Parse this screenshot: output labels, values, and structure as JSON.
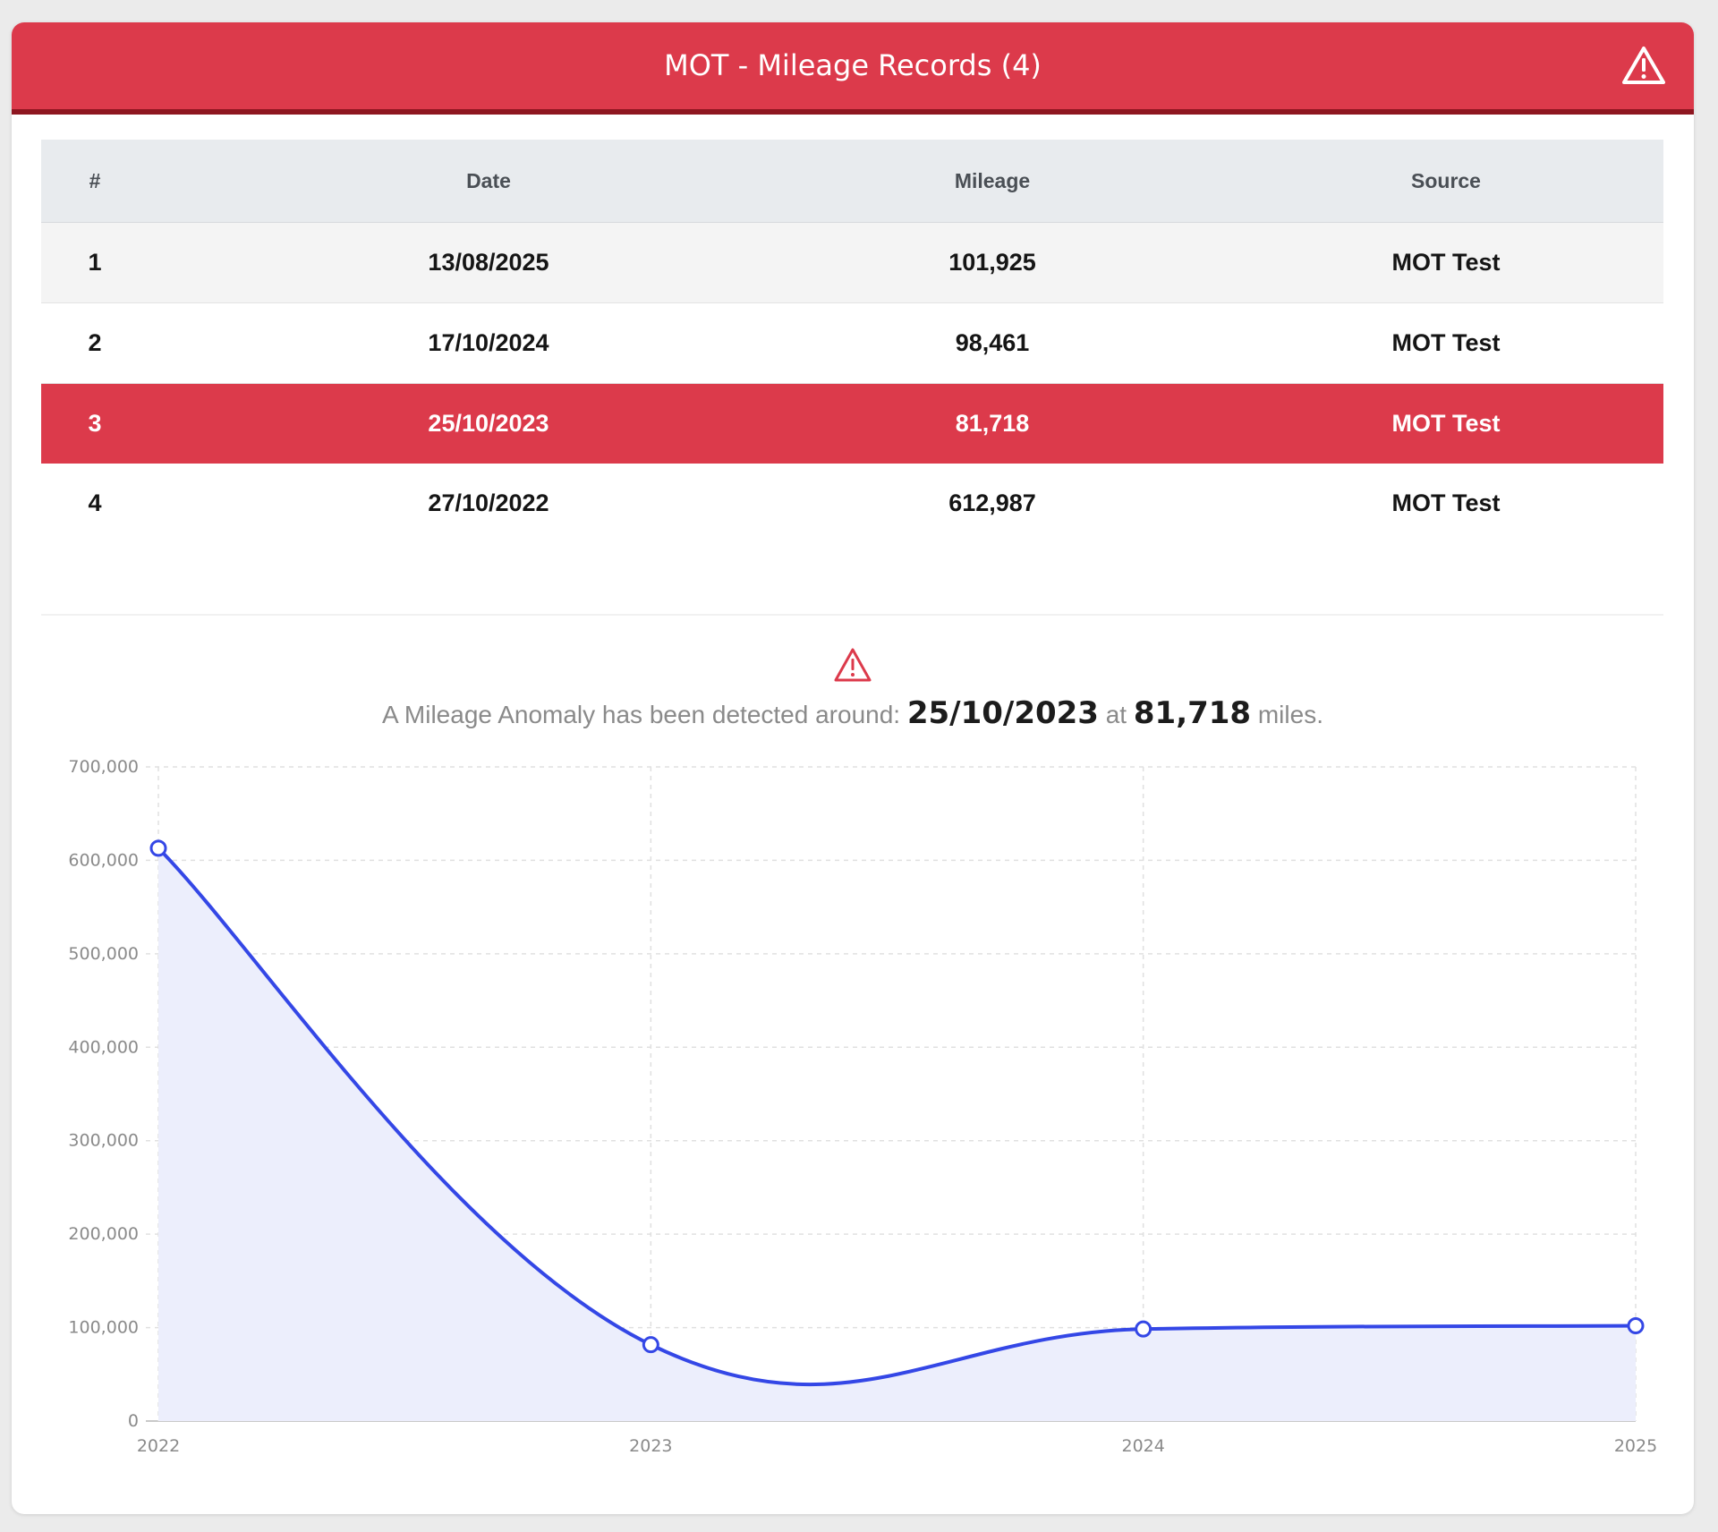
{
  "panel": {
    "title": "MOT - Mileage Records (4)",
    "header_icon": "warning-triangle-icon",
    "accent_color": "#dc3a4b",
    "accent_dark": "#8e1620"
  },
  "table": {
    "columns": [
      "#",
      "Date",
      "Mileage",
      "Source"
    ],
    "rows": [
      {
        "num": "1",
        "date": "13/08/2025",
        "mileage": "101,925",
        "source": "MOT Test"
      },
      {
        "num": "2",
        "date": "17/10/2024",
        "mileage": "98,461",
        "source": "MOT Test"
      },
      {
        "num": "3",
        "date": "25/10/2023",
        "mileage": "81,718",
        "source": "MOT Test",
        "highlighted": true
      },
      {
        "num": "4",
        "date": "27/10/2022",
        "mileage": "612,987",
        "source": "MOT Test"
      }
    ]
  },
  "anomaly": {
    "icon": "warning-triangle-icon",
    "prefix": "A Mileage Anomaly has been detected around: ",
    "date": "25/10/2023",
    "connector": " at ",
    "mileage": "81,718",
    "suffix": " miles."
  },
  "chart_data": {
    "type": "area",
    "x": [
      "2022",
      "2023",
      "2024",
      "2025"
    ],
    "series": [
      {
        "values": [
          612987,
          81718,
          98461,
          101925
        ],
        "color": "#3447e6",
        "fill": "#eceefc"
      }
    ],
    "ylim": [
      0,
      700000
    ],
    "yticks": [
      "0",
      "100,000",
      "200,000",
      "300,000",
      "400,000",
      "500,000",
      "600,000",
      "700,000"
    ],
    "grid": true,
    "title": "",
    "xlabel": "",
    "ylabel": ""
  }
}
